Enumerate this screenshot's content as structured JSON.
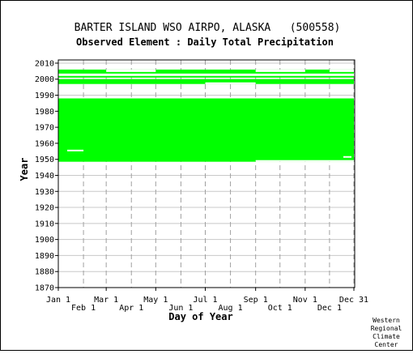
{
  "chart_data": {
    "type": "heatmap",
    "title": "BARTER ISLAND WSO AIRPO, ALASKA   (500558)",
    "subtitle": "Observed Element : Daily Total Precipitation",
    "xlabel": "Day of Year",
    "ylabel": "Year",
    "xlim": [
      1,
      366
    ],
    "ylim": [
      1870,
      2012
    ],
    "x_ticks_top_row": [
      {
        "label": "Jan 1",
        "day": 1
      },
      {
        "label": "Mar 1",
        "day": 60
      },
      {
        "label": "May 1",
        "day": 121
      },
      {
        "label": "Jul 1",
        "day": 182
      },
      {
        "label": "Sep 1",
        "day": 244
      },
      {
        "label": "Nov 1",
        "day": 305
      },
      {
        "label": "Dec 31",
        "day": 365
      }
    ],
    "x_ticks_bottom_row": [
      {
        "label": "Feb 1",
        "day": 32
      },
      {
        "label": "Apr 1",
        "day": 91
      },
      {
        "label": "Jun 1",
        "day": 152
      },
      {
        "label": "Aug 1",
        "day": 213
      },
      {
        "label": "Oct 1",
        "day": 274
      },
      {
        "label": "Dec 1",
        "day": 335
      }
    ],
    "y_ticks": [
      1870,
      1880,
      1890,
      1900,
      1910,
      1920,
      1930,
      1940,
      1950,
      1960,
      1970,
      1980,
      1990,
      2000,
      2010
    ],
    "grid": true,
    "series": [
      {
        "name": "",
        "color": "#00ff00",
        "spans": [
          {
            "year_start": 1948.5,
            "year_end": 1988.0,
            "day_start": 1,
            "day_end": 365
          },
          {
            "year_start": 1997.0,
            "year_end": 2000.0,
            "day_start": 1,
            "day_end": 365
          },
          {
            "year_start": 2001.0,
            "year_end": 2002.0,
            "day_start": 1,
            "day_end": 365
          },
          {
            "year_start": 2003.5,
            "year_end": 2006.0,
            "day_start": 1,
            "day_end": 365
          }
        ],
        "gaps": [
          {
            "year_start": 1955.0,
            "year_end": 1956.0,
            "day_start": 12,
            "day_end": 32
          },
          {
            "year_start": 1948.5,
            "year_end": 1949.5,
            "day_start": 244,
            "day_end": 365
          },
          {
            "year_start": 1951.0,
            "year_end": 1952.0,
            "day_start": 352,
            "day_end": 362
          },
          {
            "year_start": 2004.5,
            "year_end": 2006.0,
            "day_start": 60,
            "day_end": 121
          },
          {
            "year_start": 2004.5,
            "year_end": 2006.0,
            "day_start": 244,
            "day_end": 305
          },
          {
            "year_start": 2004.5,
            "year_end": 2006.0,
            "day_start": 335,
            "day_end": 365
          },
          {
            "year_start": 1997.0,
            "year_end": 1998.0,
            "day_start": 182,
            "day_end": 244
          }
        ]
      }
    ]
  },
  "credit": [
    "Western",
    "Regional",
    "Climate",
    "Center"
  ]
}
